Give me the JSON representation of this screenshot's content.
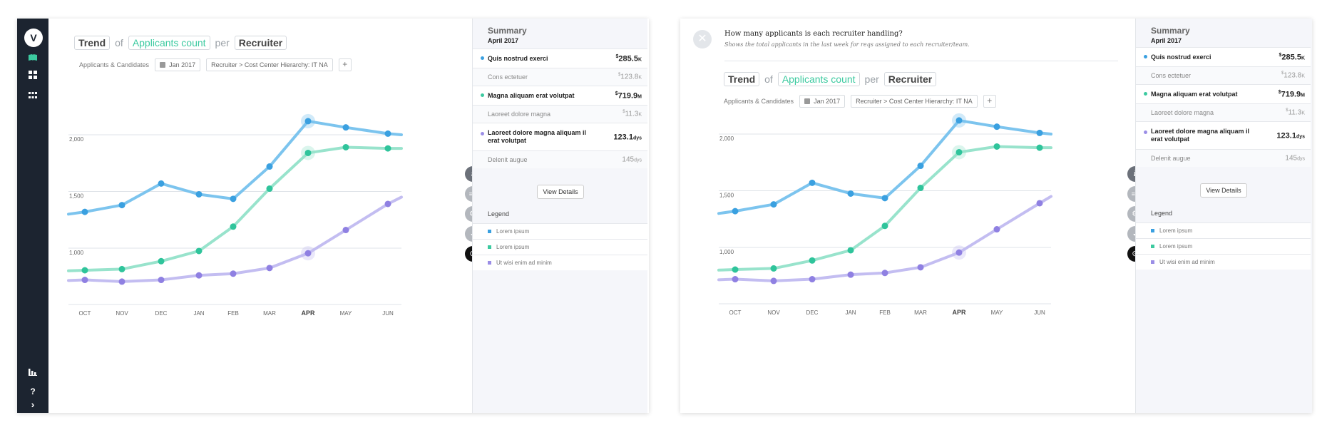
{
  "sidebar": {
    "logo": "V",
    "icons": [
      "book-icon",
      "dashboard-icon",
      "apps-grid-icon",
      "bar-chart-icon"
    ],
    "help": "?",
    "expand": "›"
  },
  "question": {
    "title": "How many applicants is each recruiter handling?",
    "subtitle": "Shows the total applicants in the last week for reqs assigned to each recruiter/team."
  },
  "title_row": {
    "trend": "Trend",
    "of": "of",
    "metric": "Applicants count",
    "per": "per",
    "dimension": "Recruiter"
  },
  "filters": {
    "label": "Applicants & Candidates",
    "date": "Jan 2017",
    "hierarchy": "Recruiter > Cost Center Hierarchy: IT NA",
    "add": "+"
  },
  "tools": {
    "info": "i",
    "add_list": "≡+",
    "settings": "⚙",
    "toggle": "◒",
    "focus": "⊙"
  },
  "summary": {
    "title": "Summary",
    "period": "April 2017",
    "items": [
      {
        "label": "Quis nostrud exerci",
        "currency": "$",
        "value": "285.5",
        "unit": "K",
        "color": "#3aa0e0",
        "sub_label": "Cons ectetuer",
        "sub_currency": "$",
        "sub_value": "123.8",
        "sub_unit": "K"
      },
      {
        "label": "Magna aliquam erat volutpat",
        "currency": "$",
        "value": "719.9",
        "unit": "M",
        "color": "#3ccaa0",
        "sub_label": "Laoreet dolore magna",
        "sub_currency": "$",
        "sub_value": "11.3",
        "sub_unit": "K"
      },
      {
        "label": "Laoreet dolore magna aliquam il erat volutpat",
        "currency": "",
        "value": "123.1",
        "unit": "dys",
        "color": "#9b8ee6",
        "sub_label": "Delenit augue",
        "sub_currency": "",
        "sub_value": "145",
        "sub_unit": "dys"
      }
    ],
    "view_details": "View Details",
    "legend_title": "Legend",
    "legend": [
      {
        "label": "Lorem ipsum",
        "color": "#3aa0e0"
      },
      {
        "label": "Lorem ipsum",
        "color": "#3ccaa0"
      },
      {
        "label": "Ut wisi enim ad minim",
        "color": "#9b8ee6"
      }
    ]
  },
  "chart_data": {
    "type": "line",
    "categories": [
      "OCT",
      "NOV",
      "DEC",
      "JAN",
      "FEB",
      "MAR",
      "APR",
      "MAY",
      "JUN"
    ],
    "highlight": "APR",
    "y_ticks": [
      "1,000",
      "1,500",
      "2,000"
    ],
    "y_tick_values": [
      1000,
      1500,
      2000
    ],
    "ylim": [
      500,
      2000
    ],
    "grid": true,
    "series": [
      {
        "color": "#3aa0e0",
        "line": "#7cc4ee",
        "values": [
          1320,
          1380,
          1570,
          1475,
          1435,
          1720,
          2120,
          2065,
          2010
        ],
        "start": 1300,
        "end": 2000
      },
      {
        "color": "#2fc49b",
        "line": "#98e3cc",
        "values": [
          805,
          815,
          885,
          975,
          1190,
          1525,
          1840,
          1890,
          1880
        ],
        "start": 800,
        "end": 1880
      },
      {
        "color": "#8f80e2",
        "line": "#c3bdf1",
        "values": [
          720,
          705,
          720,
          760,
          775,
          825,
          955,
          1160,
          1390
        ],
        "start": 715,
        "end": 1450
      }
    ]
  }
}
